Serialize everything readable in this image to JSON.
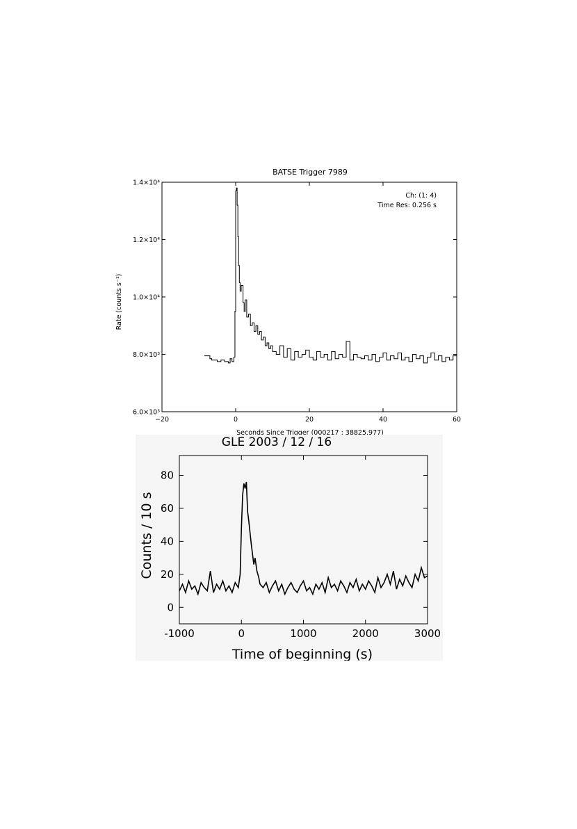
{
  "chart_data": [
    {
      "type": "line",
      "title": "BATSE Trigger 7989",
      "annotations": [
        "Ch: (1: 4)",
        "Time Res: 0.256 s"
      ],
      "xlabel": "Seconds Since Trigger (000217 : 38825.977)",
      "ylabel": "Rate (counts s⁻¹)",
      "xlim": [
        -20,
        60
      ],
      "ylim": [
        6000,
        14000
      ],
      "x_ticks": [
        "−20",
        "0",
        "20",
        "40",
        "60"
      ],
      "y_ticks": [
        "6.0×10³",
        "8.0×10³",
        "1.0×10⁴",
        "1.2×10⁴",
        "1.4×10⁴"
      ],
      "grid": false,
      "step": true,
      "x": [
        -8.5,
        -7,
        -6.5,
        -5,
        -4,
        -3,
        -2,
        -1.5,
        -1,
        -0.5,
        -0.2,
        0,
        0.2,
        0.4,
        0.6,
        0.8,
        1,
        1.2,
        1.5,
        2,
        2.3,
        2.6,
        3,
        3.5,
        4,
        4.5,
        5,
        5.5,
        6,
        6.5,
        7,
        7.5,
        8,
        8.5,
        9,
        9.5,
        10,
        11,
        12,
        13,
        14,
        15,
        16,
        17,
        18,
        19,
        20,
        21,
        22,
        23,
        24,
        25,
        26,
        27,
        28,
        29,
        30,
        31,
        32,
        33,
        34,
        35,
        36,
        37,
        38,
        39,
        40,
        41,
        42,
        43,
        44,
        45,
        46,
        47,
        48,
        49,
        50,
        51,
        52,
        53,
        54,
        55,
        56,
        57,
        58,
        59,
        60
      ],
      "values": [
        7950,
        7850,
        7800,
        7750,
        7800,
        7750,
        7700,
        7850,
        7750,
        7900,
        9500,
        13700,
        13800,
        13200,
        12100,
        11100,
        10500,
        10200,
        10400,
        9800,
        9500,
        9900,
        9300,
        9400,
        9000,
        9100,
        8800,
        9000,
        8700,
        8800,
        8500,
        8600,
        8300,
        8400,
        8200,
        8300,
        8100,
        8000,
        8300,
        7900,
        8200,
        7800,
        8100,
        7900,
        8000,
        8150,
        7900,
        7800,
        8100,
        7900,
        8000,
        7800,
        8100,
        7850,
        8000,
        7900,
        8450,
        7800,
        8000,
        7900,
        7850,
        7950,
        7800,
        8000,
        7750,
        7900,
        8050,
        7800,
        7950,
        7850,
        8050,
        7800,
        7900,
        7750,
        8000,
        7850,
        7950,
        7700,
        7900,
        8050,
        7800,
        7950,
        7750,
        7900,
        7800,
        7950,
        7700
      ]
    },
    {
      "type": "line",
      "title": "GLE 2003 / 12 / 16",
      "xlabel": "Time of beginning (s)",
      "ylabel": "Counts / 10 s",
      "xlim": [
        -1000,
        3000
      ],
      "ylim": [
        -10,
        92
      ],
      "x_ticks": [
        "-1000",
        "0",
        "1000",
        "2000",
        "3000"
      ],
      "y_ticks": [
        "0",
        "20",
        "40",
        "60",
        "80"
      ],
      "grid": false,
      "x": [
        -1000,
        -950,
        -900,
        -850,
        -800,
        -750,
        -700,
        -650,
        -600,
        -550,
        -500,
        -450,
        -400,
        -350,
        -300,
        -250,
        -200,
        -150,
        -100,
        -50,
        -20,
        0,
        20,
        40,
        60,
        80,
        100,
        120,
        140,
        160,
        180,
        200,
        220,
        250,
        280,
        300,
        350,
        400,
        450,
        500,
        550,
        600,
        650,
        700,
        750,
        800,
        850,
        900,
        950,
        1000,
        1050,
        1100,
        1150,
        1200,
        1250,
        1300,
        1350,
        1400,
        1450,
        1500,
        1550,
        1600,
        1650,
        1700,
        1750,
        1800,
        1850,
        1900,
        1950,
        2000,
        2050,
        2100,
        2150,
        2200,
        2250,
        2300,
        2350,
        2400,
        2450,
        2500,
        2550,
        2600,
        2650,
        2700,
        2750,
        2800,
        2850,
        2900,
        2950,
        3000
      ],
      "values": [
        10,
        14,
        9,
        16,
        11,
        13,
        8,
        15,
        12,
        10,
        22,
        9,
        14,
        11,
        16,
        10,
        13,
        9,
        15,
        12,
        20,
        48,
        68,
        75,
        72,
        76,
        58,
        52,
        45,
        38,
        32,
        26,
        30,
        22,
        18,
        14,
        12,
        15,
        9,
        13,
        16,
        10,
        14,
        8,
        12,
        15,
        11,
        9,
        13,
        16,
        10,
        12,
        8,
        14,
        11,
        15,
        9,
        18,
        12,
        14,
        10,
        16,
        13,
        9,
        15,
        12,
        17,
        10,
        14,
        11,
        16,
        13,
        9,
        18,
        12,
        15,
        20,
        14,
        22,
        11,
        17,
        13,
        19,
        15,
        12,
        20,
        16,
        24,
        18,
        19
      ]
    }
  ]
}
